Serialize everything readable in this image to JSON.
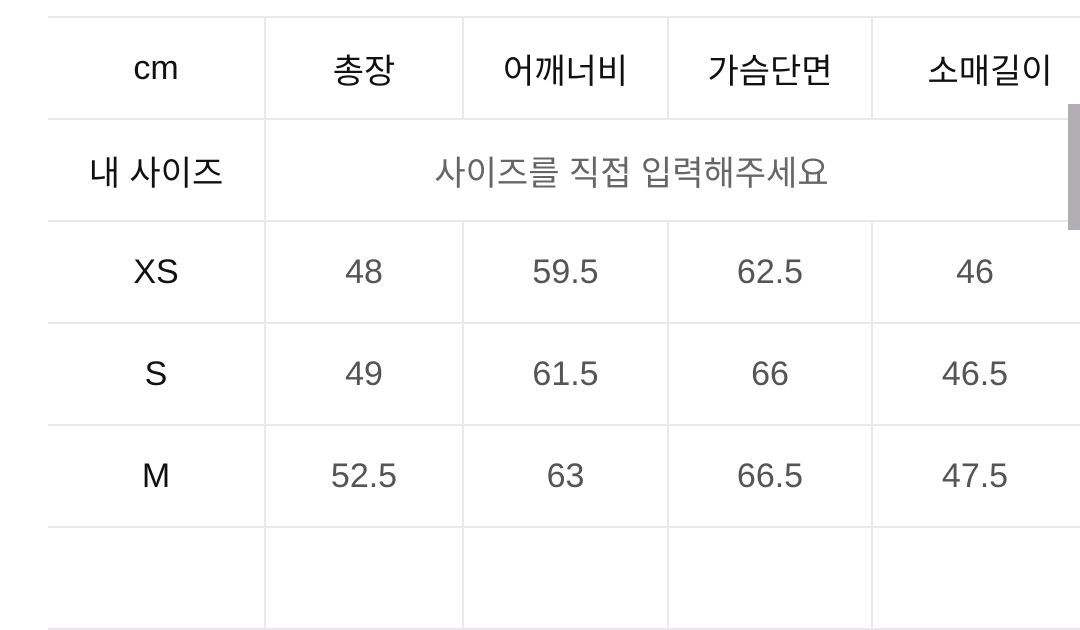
{
  "table": {
    "header": [
      "cm",
      "총장",
      "어깨너비",
      "가슴단면",
      "소매길이"
    ],
    "my_size": {
      "label": "내 사이즈",
      "placeholder": "사이즈를 직접 입력해주세요"
    },
    "rows": [
      {
        "size": "XS",
        "values": [
          "48",
          "59.5",
          "62.5",
          "46"
        ]
      },
      {
        "size": "S",
        "values": [
          "49",
          "61.5",
          "66",
          "46.5"
        ]
      },
      {
        "size": "M",
        "values": [
          "52.5",
          "63",
          "66.5",
          "47.5"
        ]
      }
    ]
  }
}
